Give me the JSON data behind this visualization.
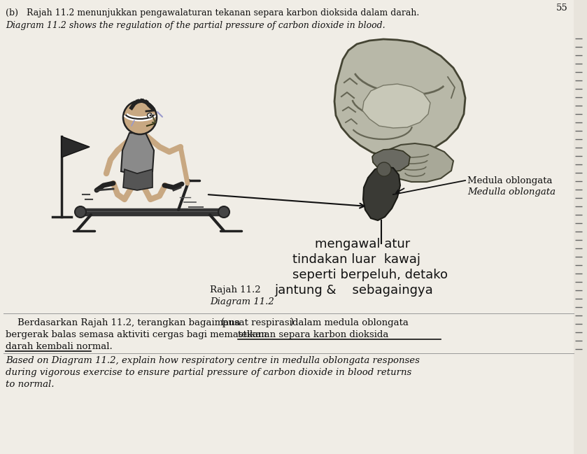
{
  "bg_color": "#e8e4dc",
  "paper_color": "#f0ede6",
  "title_line1": "(b)   Rajah 11.2 menunjukkan pengawalaturan tekanan separa karbon dioksida dalam darah.",
  "title_line2": "Diagram 11.2 shows the regulation of the partial pressure of carbon dioxide in blood.",
  "label_malay": "Medula oblongata",
  "label_english": "Medulla oblongata",
  "diagram_label_malay": "Rajah 11.2",
  "diagram_label_english": "Diagram 11.2",
  "hw1": "mengawal atur",
  "hw2": "tindakan luar  kawaj",
  "hw3": "seperti berpeluh, detako",
  "hw4": "jantung &    sebagaingya",
  "q_malay1": "Berdasarkan Rajah 11.2, terangkan bagaimana",
  "q_malay1b": "pusat respirasi",
  "q_malay1c": "dalam medula oblongata",
  "q_malay2a": "bergerak balas semasa aktiviti cergas bagi memastikan ",
  "q_malay2b": "tekanan separa karbon dioksida",
  "q_malay3": "darah kembali normal.",
  "q_eng1": "Based on Diagram 11.2, explain how respiratory centre in medulla oblongata responses",
  "q_eng2": "during vigorous exercise to ensure partial pressure of carbon dioxide in blood returns",
  "q_eng3": "to normal.",
  "page_number": "55",
  "text_color": "#111111",
  "gray_color": "#888888"
}
